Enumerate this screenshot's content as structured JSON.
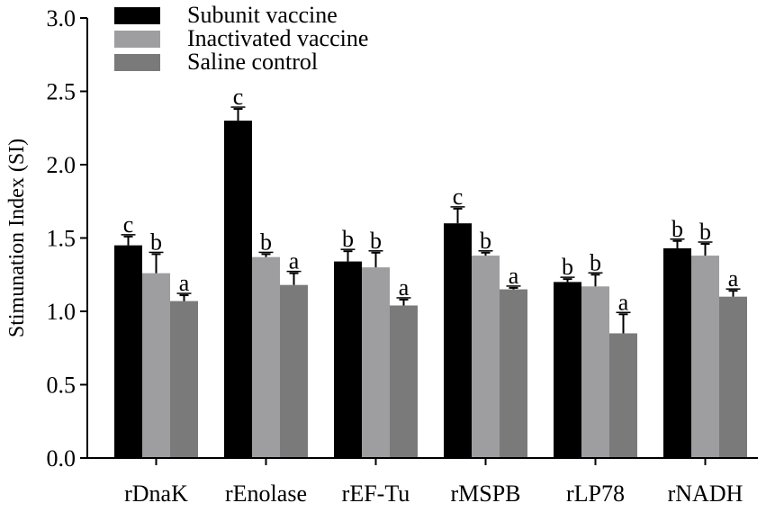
{
  "chart_data": {
    "type": "bar",
    "title": "",
    "xlabel": "",
    "ylabel": "Stimunation Index (SI)",
    "ylim": [
      0,
      3.0
    ],
    "yticks": [
      "0.0",
      "0.5",
      "1.0",
      "1.5",
      "2.0",
      "2.5",
      "3.0"
    ],
    "ytick_values": [
      0,
      0.5,
      1.0,
      1.5,
      2.0,
      2.5,
      3.0
    ],
    "grid": false,
    "legend_position": "top-left",
    "categories": [
      "rDnaK",
      "rEnolase",
      "rEF-Tu",
      "rMSPB",
      "rLP78",
      "rNADH"
    ],
    "series": [
      {
        "name": "Subunit vaccine",
        "color": "#000000",
        "values": [
          1.45,
          2.3,
          1.34,
          1.6,
          1.2,
          1.43
        ],
        "errors": [
          0.06,
          0.08,
          0.07,
          0.1,
          0.02,
          0.05
        ],
        "letters": [
          "c",
          "c",
          "b",
          "c",
          "b",
          "b"
        ]
      },
      {
        "name": "Inactivated vaccine",
        "color": "#9e9ea1",
        "values": [
          1.26,
          1.37,
          1.3,
          1.38,
          1.17,
          1.38
        ],
        "errors": [
          0.13,
          0.02,
          0.1,
          0.02,
          0.08,
          0.08
        ],
        "letters": [
          "b",
          "b",
          "b",
          "b",
          "b",
          "b"
        ]
      },
      {
        "name": "Saline control",
        "color": "#7a7a7a",
        "values": [
          1.07,
          1.18,
          1.04,
          1.15,
          0.85,
          1.1
        ],
        "errors": [
          0.04,
          0.08,
          0.04,
          0.01,
          0.13,
          0.04
        ],
        "letters": [
          "a",
          "a",
          "a",
          "a",
          "a",
          "a"
        ]
      }
    ]
  }
}
